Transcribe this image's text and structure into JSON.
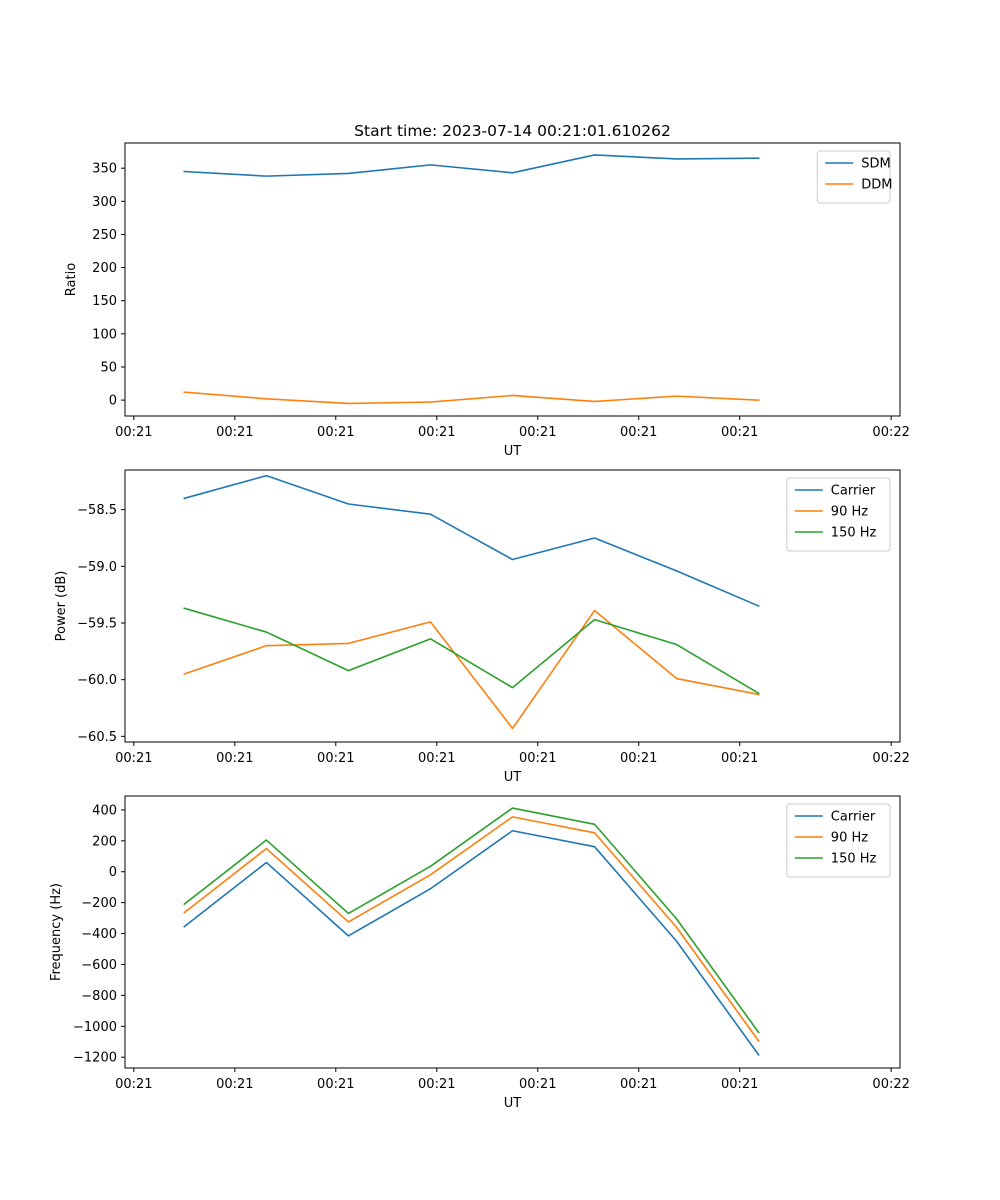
{
  "chart_data": [
    {
      "type": "line",
      "title": "Start time: 2023-07-14 00:21:01.610262",
      "xlabel": "UT",
      "ylabel": "Ratio",
      "x_tick_labels": [
        "00:21",
        "00:21",
        "00:21",
        "00:21",
        "00:21",
        "00:21",
        "00:21"
      ],
      "x_tick_labels_end": "00:22",
      "xlim": [
        -0.47,
        5.67
      ],
      "x": [
        0,
        0.65,
        1.3,
        1.95,
        2.6,
        3.25,
        3.9,
        4.55
      ],
      "ylim": [
        -24,
        388
      ],
      "yticks": [
        0,
        50,
        100,
        150,
        200,
        250,
        300,
        350
      ],
      "legend": "top-right",
      "series": [
        {
          "name": "SDM",
          "color": "#1f77b4",
          "values": [
            345,
            338,
            342,
            355,
            343,
            370,
            364,
            365
          ]
        },
        {
          "name": "DDM",
          "color": "#ff7f0e",
          "values": [
            12,
            2,
            -5,
            -3,
            7,
            -2,
            6,
            0
          ]
        }
      ]
    },
    {
      "type": "line",
      "title": "",
      "xlabel": "UT",
      "ylabel": "Power (dB)",
      "x_tick_labels": [
        "00:21",
        "00:21",
        "00:21",
        "00:21",
        "00:21",
        "00:21",
        "00:21"
      ],
      "x_tick_labels_end": "00:22",
      "xlim": [
        -0.47,
        5.67
      ],
      "x": [
        0,
        0.65,
        1.3,
        1.95,
        2.6,
        3.25,
        3.9,
        4.55
      ],
      "ylim": [
        -60.55,
        -58.15
      ],
      "yticks": [
        -58.5,
        -59.0,
        -59.5,
        -60.0,
        -60.5
      ],
      "ytick_labels": [
        "−58.5",
        "−59.0",
        "−59.5",
        "−60.0",
        "−60.5"
      ],
      "legend": "top-right",
      "series": [
        {
          "name": "Carrier",
          "color": "#1f77b4",
          "values": [
            -58.4,
            -58.2,
            -58.45,
            -58.54,
            -58.94,
            -58.75,
            -59.04,
            -59.35
          ]
        },
        {
          "name": "90 Hz",
          "color": "#ff7f0e",
          "values": [
            -59.95,
            -59.7,
            -59.68,
            -59.49,
            -60.43,
            -59.39,
            -59.99,
            -60.13
          ]
        },
        {
          "name": "150 Hz",
          "color": "#2ca02c",
          "values": [
            -59.37,
            -59.58,
            -59.92,
            -59.64,
            -60.07,
            -59.47,
            -59.69,
            -60.12
          ]
        }
      ]
    },
    {
      "type": "line",
      "title": "",
      "xlabel": "UT",
      "ylabel": "Frequency (Hz)",
      "x_tick_labels": [
        "00:21",
        "00:21",
        "00:21",
        "00:21",
        "00:21",
        "00:21",
        "00:21"
      ],
      "x_tick_labels_end": "00:22",
      "xlim": [
        -0.47,
        5.67
      ],
      "x": [
        0,
        0.65,
        1.3,
        1.95,
        2.6,
        3.25,
        3.9,
        4.55
      ],
      "ylim": [
        -1270,
        490
      ],
      "yticks": [
        400,
        200,
        0,
        -200,
        -400,
        -600,
        -800,
        -1000,
        -1200
      ],
      "ytick_labels": [
        "400",
        "200",
        "0",
        "−200",
        "−400",
        "−600",
        "−800",
        "−1000",
        "−1200"
      ],
      "legend": "top-right",
      "series": [
        {
          "name": "Carrier",
          "color": "#1f77b4",
          "values": [
            -355,
            60,
            -415,
            -110,
            265,
            162,
            -450,
            -1185
          ]
        },
        {
          "name": "90 Hz",
          "color": "#ff7f0e",
          "values": [
            -265,
            150,
            -325,
            -20,
            355,
            252,
            -360,
            -1095
          ]
        },
        {
          "name": "150 Hz",
          "color": "#2ca02c",
          "values": [
            -210,
            205,
            -270,
            35,
            412,
            307,
            -305,
            -1040
          ]
        }
      ]
    }
  ]
}
